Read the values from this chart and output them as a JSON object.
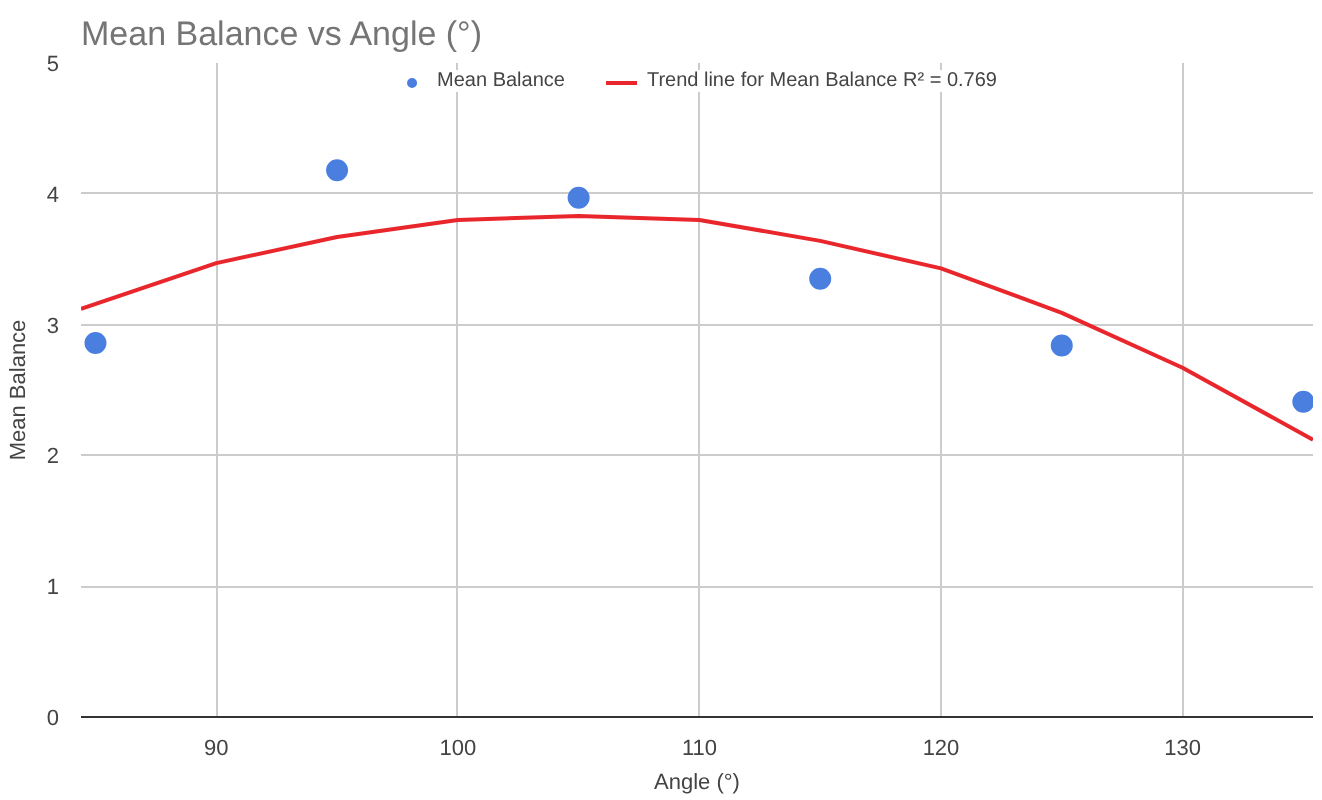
{
  "chart_data": {
    "type": "scatter",
    "title": "Mean Balance vs Angle (°)",
    "xlabel": "Angle (°)",
    "ylabel": "Mean Balance",
    "xlim": [
      84.4,
      135.4
    ],
    "xticks": [
      90,
      100,
      110,
      120,
      130
    ],
    "ylim": [
      0,
      5
    ],
    "yticks": [
      0,
      1,
      2,
      3,
      4,
      5
    ],
    "grid": true,
    "legend": "top",
    "marker": "circle",
    "series": [
      {
        "name": "Mean Balance",
        "color": "#4a7fe0",
        "x": [
          85,
          95,
          105,
          115,
          125,
          135
        ],
        "values": [
          2.86,
          4.18,
          3.97,
          3.35,
          2.84,
          2.41
        ]
      },
      {
        "name": "Trend line for Mean Balance R² = 0.769",
        "type": "line",
        "color": "#e8262b",
        "marker": "none",
        "line_style": "solid",
        "x": [
          84.4,
          90,
          95,
          100,
          105,
          110,
          115,
          120,
          125,
          130,
          135.4
        ],
        "values": [
          3.12,
          3.47,
          3.67,
          3.8,
          3.83,
          3.8,
          3.64,
          3.43,
          3.09,
          2.67,
          2.12
        ]
      }
    ]
  }
}
